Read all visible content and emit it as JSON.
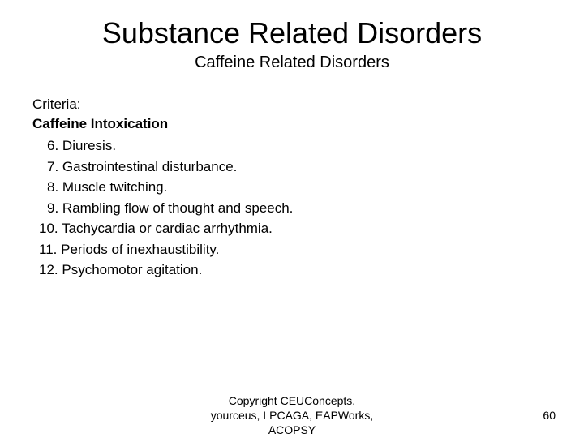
{
  "title": "Substance Related Disorders",
  "subtitle": "Caffeine Related Disorders",
  "criteria_label": "Criteria:",
  "condition_name": "Caffeine Intoxication",
  "items": [
    {
      "num": "6.",
      "text": "Diuresis."
    },
    {
      "num": "7.",
      "text": "Gastrointestinal disturbance."
    },
    {
      "num": "8.",
      "text": "Muscle twitching."
    },
    {
      "num": "9.",
      "text": "Rambling flow of thought and speech."
    },
    {
      "num": "10.",
      "text": "Tachycardia or cardiac arrhythmia."
    },
    {
      "num": "11.",
      "text": "Periods of inexhaustibility."
    },
    {
      "num": "12.",
      "text": "Psychomotor agitation."
    }
  ],
  "copyright_line1": "Copyright CEUConcepts,",
  "copyright_line2": "yourceus, LPCAGA, EAPWorks,",
  "copyright_line3": "ACOPSY",
  "page_number": "60",
  "colors": {
    "background": "#ffffff",
    "text": "#000000"
  },
  "fonts": {
    "title_size": 36,
    "subtitle_size": 20,
    "body_size": 17,
    "footer_size": 14
  }
}
